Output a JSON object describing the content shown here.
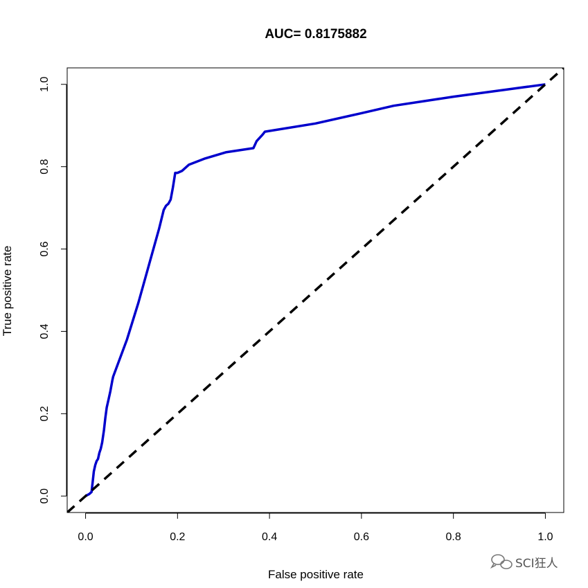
{
  "chart_data": {
    "type": "line",
    "title": "AUC= 0.8175882",
    "xlabel": "False positive rate",
    "ylabel": "True positive rate",
    "xlim": [
      -0.04,
      1.04
    ],
    "ylim": [
      -0.04,
      1.04
    ],
    "xticks": [
      0.0,
      0.2,
      0.4,
      0.6,
      0.8,
      1.0
    ],
    "xtick_labels": [
      "0.0",
      "0.2",
      "0.4",
      "0.6",
      "0.8",
      "1.0"
    ],
    "yticks": [
      0.0,
      0.2,
      0.4,
      0.6,
      0.8,
      1.0
    ],
    "ytick_labels": [
      "0.0",
      "0.2",
      "0.4",
      "0.6",
      "0.8",
      "1.0"
    ],
    "grid": false,
    "series": [
      {
        "color": "#0000cc",
        "style": "solid",
        "x": [
          0.0,
          0.008,
          0.013,
          0.016,
          0.018,
          0.021,
          0.024,
          0.027,
          0.03,
          0.033,
          0.036,
          0.04,
          0.043,
          0.046,
          0.05,
          0.054,
          0.058,
          0.06,
          0.09,
          0.115,
          0.14,
          0.16,
          0.17,
          0.175,
          0.18,
          0.185,
          0.19,
          0.195,
          0.2,
          0.21,
          0.225,
          0.26,
          0.305,
          0.335,
          0.365,
          0.372,
          0.385,
          0.39,
          0.5,
          0.6,
          0.67,
          0.8,
          1.0
        ],
        "y": [
          0.0,
          0.005,
          0.01,
          0.04,
          0.06,
          0.075,
          0.085,
          0.09,
          0.105,
          0.115,
          0.13,
          0.16,
          0.19,
          0.215,
          0.235,
          0.255,
          0.28,
          0.29,
          0.38,
          0.47,
          0.57,
          0.65,
          0.695,
          0.705,
          0.71,
          0.72,
          0.75,
          0.785,
          0.785,
          0.79,
          0.805,
          0.82,
          0.835,
          0.84,
          0.845,
          0.862,
          0.878,
          0.885,
          0.905,
          0.93,
          0.948,
          0.97,
          1.0
        ]
      },
      {
        "color": "#000000",
        "style": "dashed",
        "x": [
          -0.04,
          1.04
        ],
        "y": [
          -0.04,
          1.04
        ]
      }
    ],
    "watermark": "SCI狂人"
  }
}
